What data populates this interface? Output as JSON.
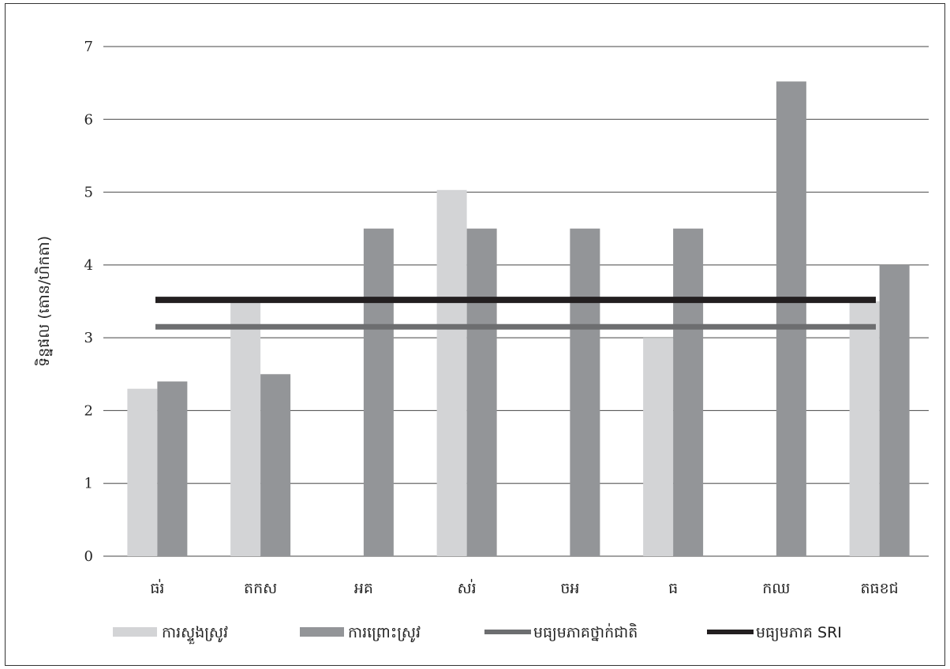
{
  "chart_data": {
    "type": "bar",
    "ylabel": "ទិន្នផល (តោន/ហិកតា)",
    "ylim": [
      0,
      7
    ],
    "yticks": [
      0,
      1,
      2,
      3,
      4,
      5,
      6,
      7
    ],
    "grid": true,
    "legend_position": "bottom",
    "categories": [
      "ធរ់",
      "តកស",
      "អគ",
      "សរ់",
      "ចអ",
      "ធ",
      "កឈ",
      "តធខជ"
    ],
    "series": [
      {
        "name": "ការស្ទួងស្រូវ",
        "color": "#d3d4d6",
        "values": [
          2.3,
          3.5,
          0,
          5.03,
          0,
          3.0,
          0,
          3.5
        ]
      },
      {
        "name": "ការព្រោះស្រូវ",
        "color": "#939598",
        "values": [
          2.4,
          2.5,
          4.5,
          4.5,
          4.5,
          4.5,
          6.52,
          4.0
        ]
      }
    ],
    "reference_lines": [
      {
        "name": "មធ្យមភាគថ្នាក់ជាតិ",
        "color": "#6d6e70",
        "value": 3.15
      },
      {
        "name": "មធ្យមភាគ SRI",
        "color": "#231f20",
        "value": 3.52
      }
    ]
  }
}
